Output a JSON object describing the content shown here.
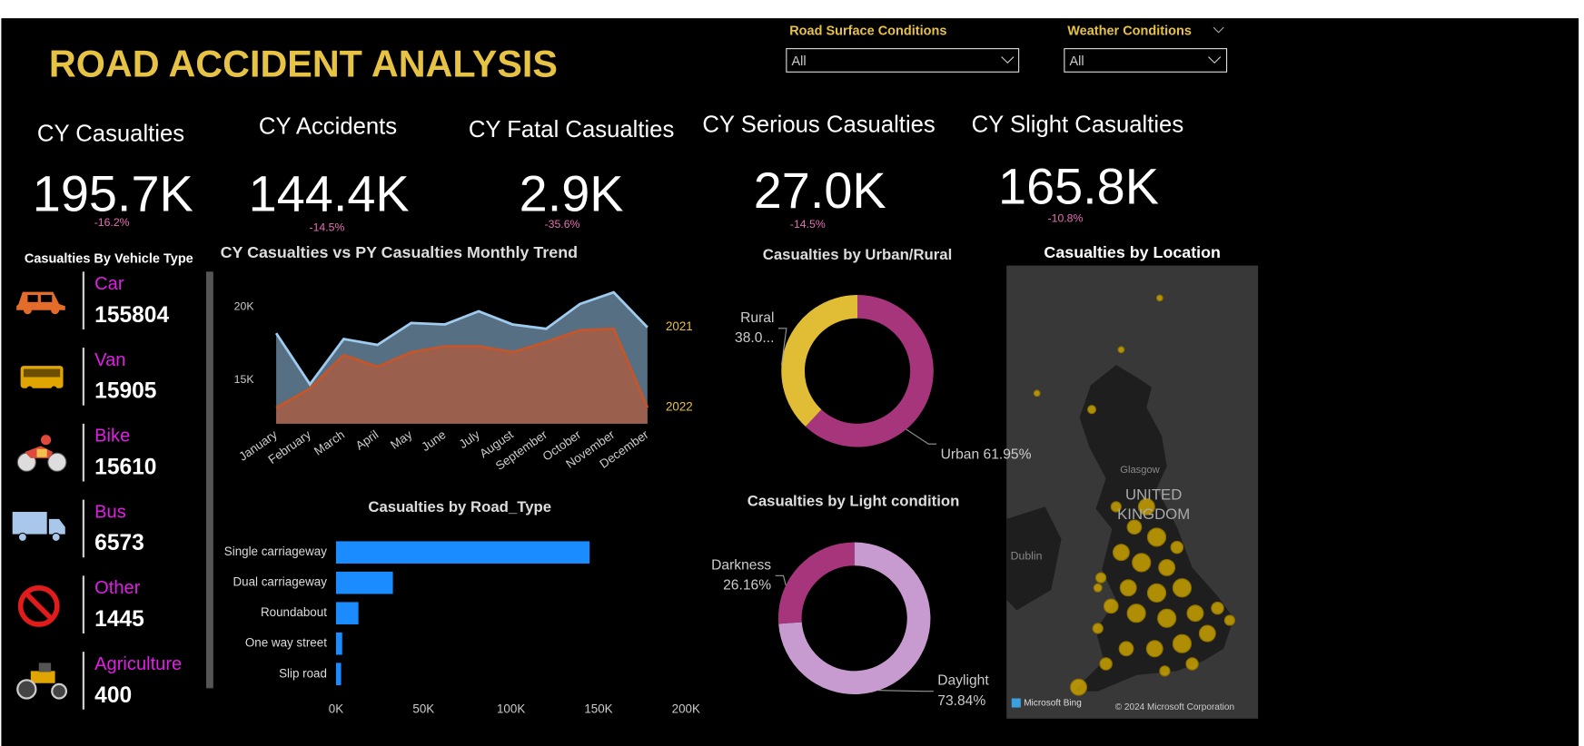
{
  "header": {
    "title": "ROAD ACCIDENT ANALYSIS"
  },
  "filters": [
    {
      "label": "Road Surface Conditions",
      "value": "All"
    },
    {
      "label": "Weather Conditions",
      "value": "All"
    }
  ],
  "kpis": [
    {
      "label": "CY Casualties",
      "value": "195.7K",
      "change": "-16.2%"
    },
    {
      "label": "CY Accidents",
      "value": "144.4K",
      "change": "-14.5%"
    },
    {
      "label": "CY Fatal Casualties",
      "value": "2.9K",
      "change": "-35.6%"
    },
    {
      "label": "CY Serious Casualties",
      "value": "27.0K",
      "change": "-14.5%"
    },
    {
      "label": "CY Slight Casualties",
      "value": "165.8K",
      "change": "-10.8%"
    }
  ],
  "vehicle_panel": {
    "title": "Casualties By Vehicle Type",
    "items": [
      {
        "name": "Car",
        "value": 155804
      },
      {
        "name": "Van",
        "value": 15905
      },
      {
        "name": "Bike",
        "value": 15610
      },
      {
        "name": "Bus",
        "value": 6573
      },
      {
        "name": "Other",
        "value": 1445
      },
      {
        "name": "Agriculture",
        "value": 400
      }
    ]
  },
  "map": {
    "title": "Casualties by Location",
    "country": [
      "UNITED",
      "KINGDOM"
    ],
    "places": [
      "Glasgow",
      "Dublin"
    ],
    "attribution": [
      "Microsoft Bing",
      "© 2024 Microsoft Corporation"
    ]
  },
  "chart_data": [
    {
      "type": "area",
      "title": "CY Casualties vs PY Casualties Monthly Trend",
      "categories": [
        "January",
        "February",
        "March",
        "April",
        "May",
        "June",
        "July",
        "August",
        "September",
        "October",
        "November",
        "December"
      ],
      "series": [
        {
          "name": "2021",
          "color": "#9fcbee",
          "values": [
            18200,
            14700,
            17800,
            17400,
            18900,
            18800,
            19700,
            18800,
            18500,
            20200,
            21000,
            18600
          ]
        },
        {
          "name": "2022",
          "color": "#c4562c",
          "values": [
            13100,
            14400,
            16700,
            15900,
            16900,
            17300,
            17300,
            16900,
            17600,
            18400,
            18500,
            13100
          ]
        }
      ],
      "ylim": [
        12000,
        22000
      ],
      "yticks": [
        {
          "value": 15000,
          "label": "15K"
        },
        {
          "value": 20000,
          "label": "20K"
        }
      ],
      "grid": false
    },
    {
      "type": "hbar",
      "title": "Casualties by Road_Type",
      "categories": [
        "Single carriageway",
        "Dual carriageway",
        "Roundabout",
        "One way street",
        "Slip road"
      ],
      "values": [
        144900,
        32500,
        12800,
        3500,
        2900
      ],
      "color": "#1a8cff",
      "xlim": [
        0,
        200000
      ],
      "xticks": [
        {
          "value": 0,
          "label": "0K"
        },
        {
          "value": 50000,
          "label": "50K"
        },
        {
          "value": 100000,
          "label": "100K"
        },
        {
          "value": 150000,
          "label": "150K"
        },
        {
          "value": 200000,
          "label": "200K"
        }
      ],
      "grid": false
    },
    {
      "type": "donut",
      "title": "Casualties by Urban/Rural",
      "categories": [
        "Urban",
        "Rural"
      ],
      "values": [
        61.95,
        38.05
      ],
      "value_labels": [
        "61.95%",
        "38.0..."
      ],
      "colors": [
        "#a6357b",
        "#e0bd35"
      ]
    },
    {
      "type": "donut",
      "title": "Casualties by Light condition",
      "categories": [
        "Daylight",
        "Darkness"
      ],
      "values": [
        73.84,
        26.16
      ],
      "value_labels": [
        "73.84%",
        "26.16%"
      ],
      "colors": [
        "#c79bcf",
        "#a6357b"
      ]
    }
  ]
}
